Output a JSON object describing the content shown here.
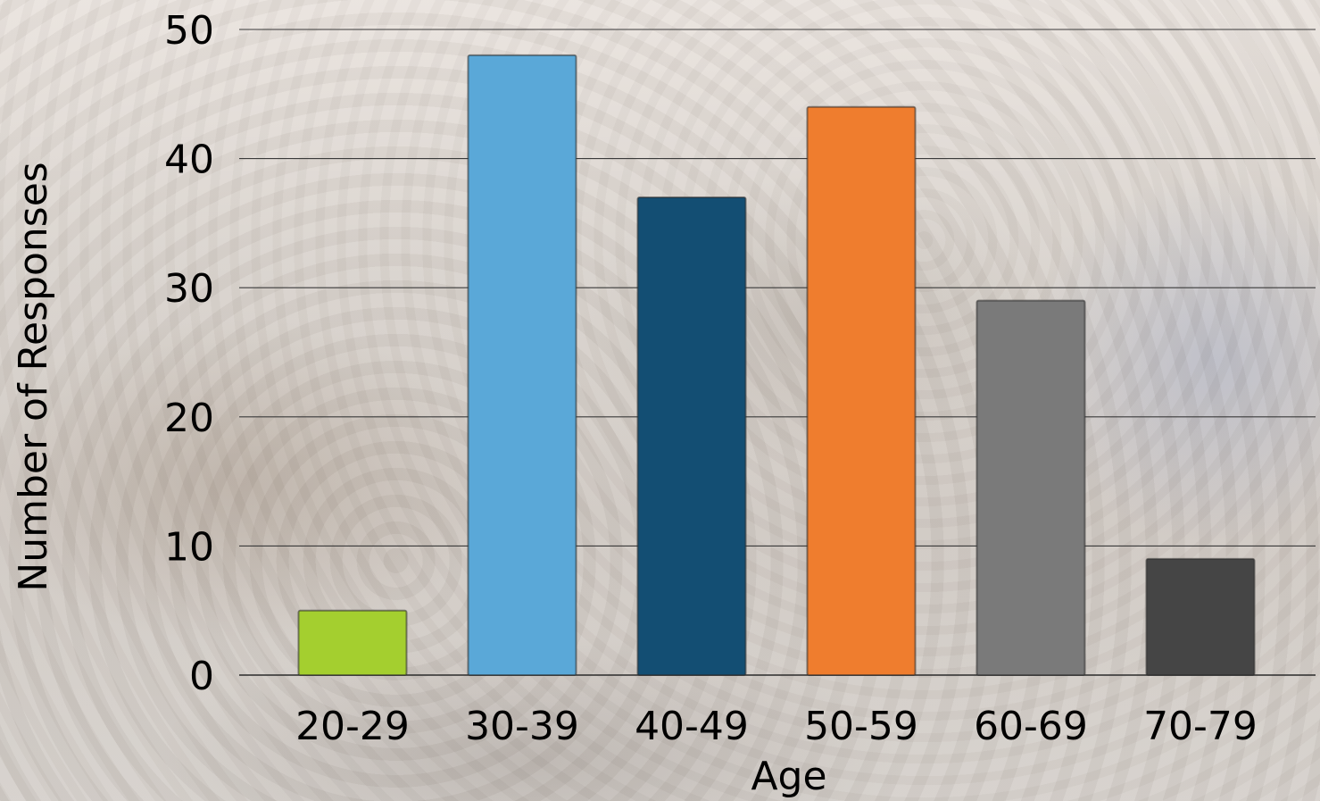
{
  "chart_data": {
    "type": "bar",
    "categories": [
      "20-29",
      "30-39",
      "40-49",
      "50-59",
      "60-69",
      "70-79"
    ],
    "values": [
      5,
      48,
      37,
      44,
      29,
      9
    ],
    "bar_colors": [
      "#a4cf2f",
      "#5aa8d8",
      "#134e73",
      "#ef7d2e",
      "#7a7a7a",
      "#454545"
    ],
    "xlabel": "Age",
    "ylabel": "Number of Responses",
    "ylim": [
      0,
      50
    ],
    "yticks": [
      0,
      10,
      20,
      30,
      40,
      50
    ],
    "grid": true
  }
}
